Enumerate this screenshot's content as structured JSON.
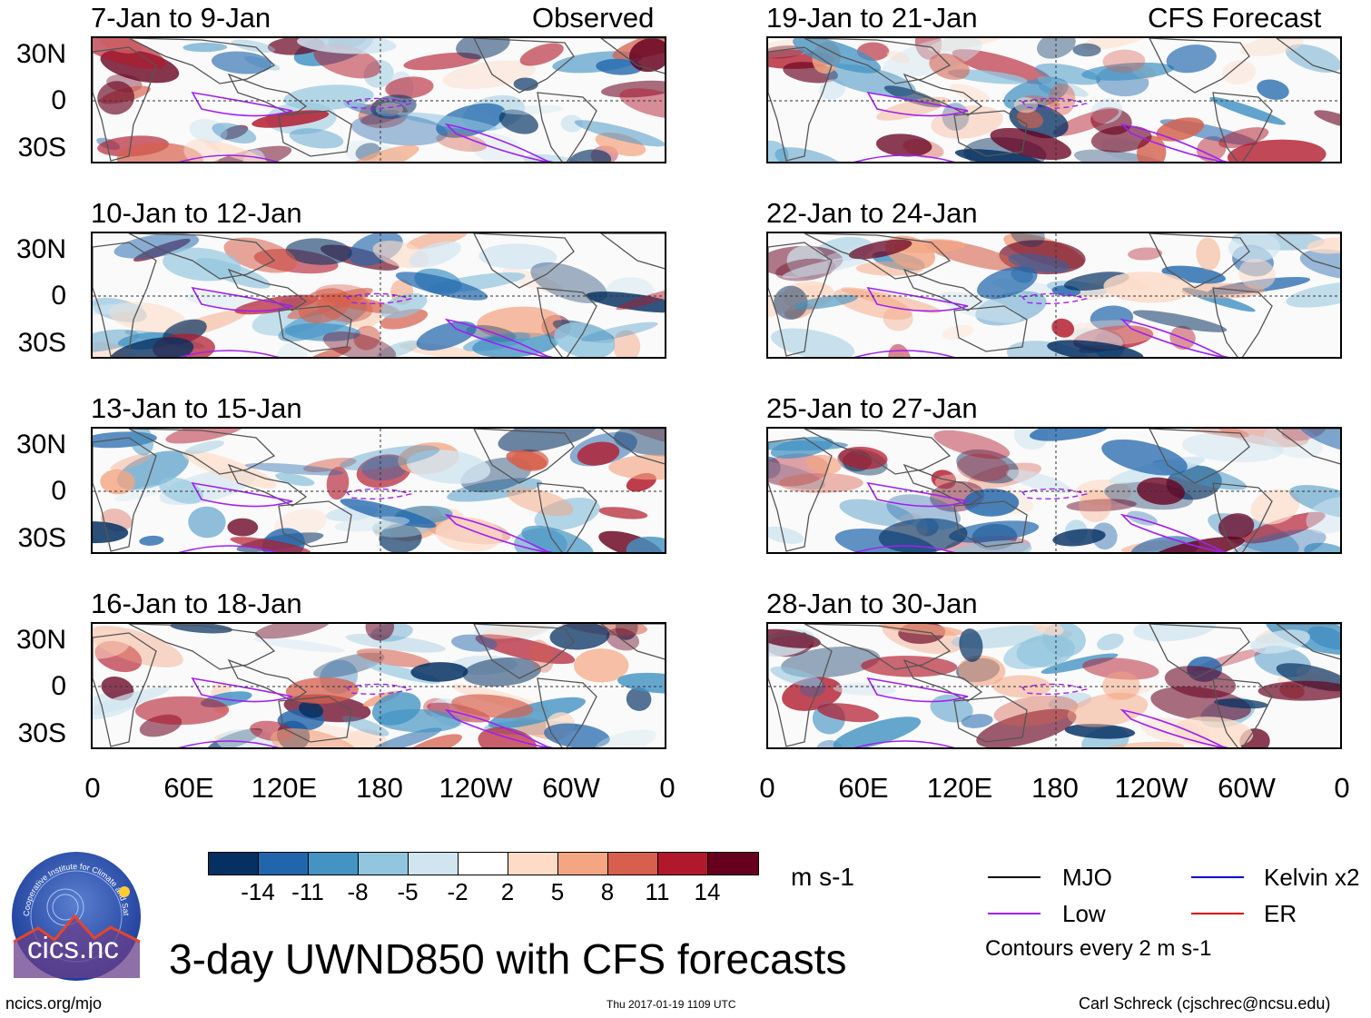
{
  "header": {
    "left_label": "Observed",
    "right_label": "CFS Forecast"
  },
  "panels": [
    {
      "title": "7-Jan to 9-Jan"
    },
    {
      "title": "10-Jan to 12-Jan"
    },
    {
      "title": "13-Jan to 15-Jan"
    },
    {
      "title": "16-Jan to 18-Jan"
    },
    {
      "title": "19-Jan to 21-Jan"
    },
    {
      "title": "22-Jan to 24-Jan"
    },
    {
      "title": "25-Jan to 27-Jan"
    },
    {
      "title": "28-Jan to 30-Jan"
    }
  ],
  "axes": {
    "y_ticks": [
      "30N",
      "0",
      "30S"
    ],
    "x_ticks": [
      "0",
      "60E",
      "120E",
      "180",
      "120W",
      "60W",
      "0"
    ]
  },
  "colorbar": {
    "colors": [
      "#053061",
      "#2166ac",
      "#4393c3",
      "#92c5de",
      "#d1e5f0",
      "#ffffff",
      "#fddbc7",
      "#f4a582",
      "#d6604d",
      "#b2182b",
      "#67001f"
    ],
    "labels": [
      "-14",
      "-11",
      "-8",
      "-5",
      "-2",
      "2",
      "5",
      "8",
      "11",
      "14"
    ],
    "units": "m s-1"
  },
  "legend": {
    "mjo": "MJO",
    "low": "Low",
    "kelvin": "Kelvin x2",
    "er": "ER",
    "mjo_color": "#000000",
    "low_color": "#a020f0",
    "kelvin_color": "#0000cd",
    "er_color": "#dd0000",
    "contour_note": "Contours every 2 m s-1"
  },
  "logo": {
    "text": "cics.nc",
    "ring_text": "Cooperative Institute for Climate and Satellites"
  },
  "main_title": "3-day UWND850 with CFS forecasts",
  "footer": {
    "left": "ncics.org/mjo",
    "center": "Thu 2017-01-19 1109 UTC",
    "right": "Carl Schreck (cjschrec@ncsu.edu)"
  }
}
